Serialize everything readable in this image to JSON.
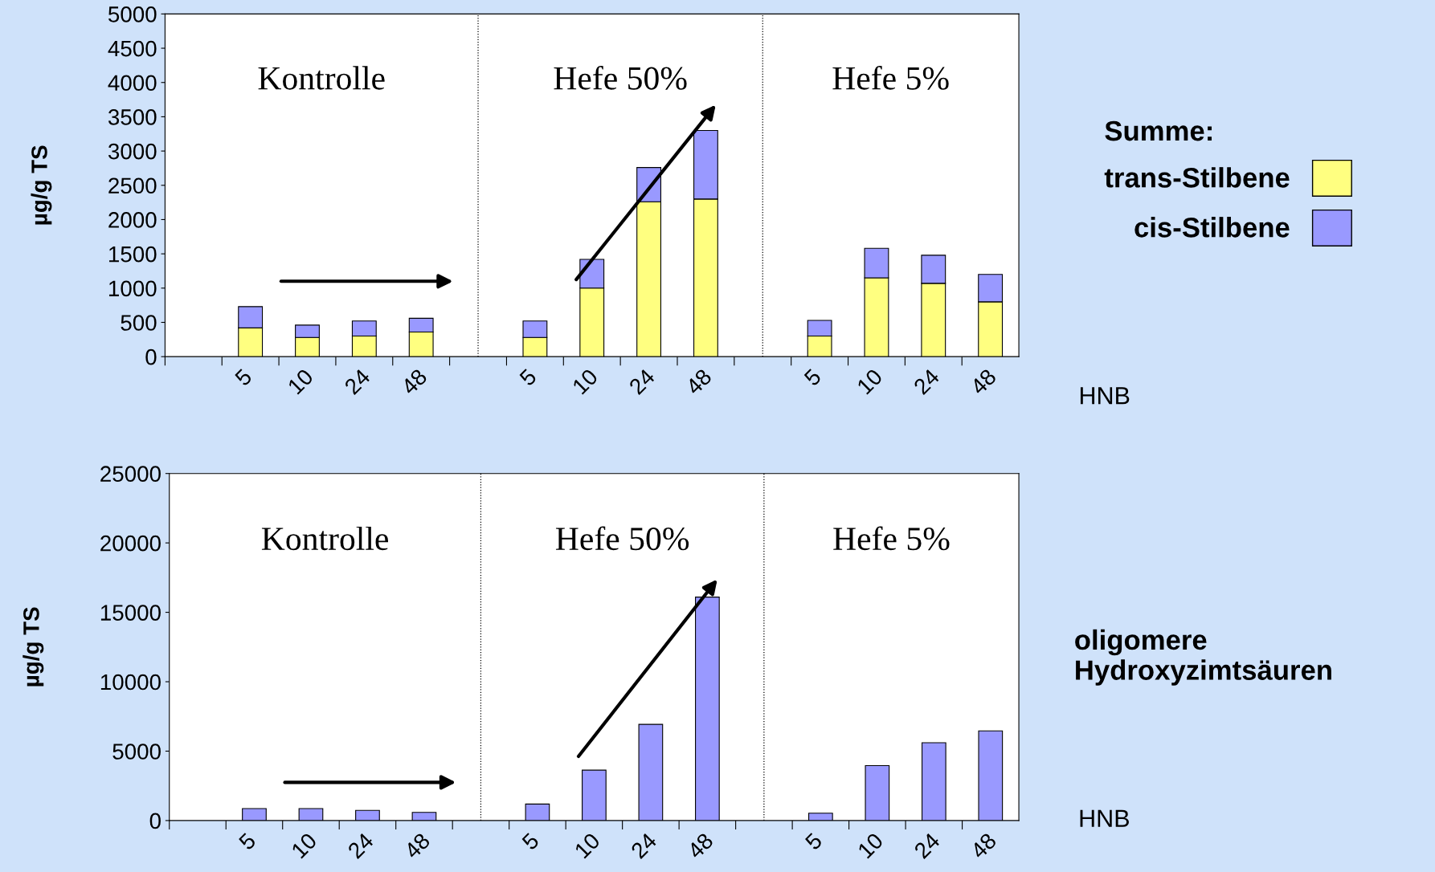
{
  "chart_data": [
    {
      "type": "bar",
      "stacked": true,
      "ylabel": "µg/g TS",
      "xlabel": "HNB",
      "legend_title": "Summe:",
      "legend": "right",
      "categories": [
        null,
        "5",
        "10",
        "24",
        "48",
        null,
        "5",
        "10",
        "24",
        "48",
        null,
        "5",
        "10",
        "24",
        "48"
      ],
      "series": [
        {
          "name": "trans-Stilbene",
          "color": "#ffff80",
          "values": [
            null,
            420,
            280,
            300,
            360,
            null,
            280,
            1000,
            2260,
            2300,
            null,
            300,
            1150,
            1070,
            800
          ]
        },
        {
          "name": "cis-Stilbene",
          "color": "#9999ff",
          "values": [
            null,
            310,
            180,
            220,
            200,
            null,
            240,
            420,
            500,
            1000,
            null,
            230,
            430,
            410,
            400
          ]
        }
      ],
      "ylim": [
        0,
        5000
      ],
      "yticks": [
        0,
        500,
        1000,
        1500,
        2000,
        2500,
        3000,
        3500,
        4000,
        4500,
        5000
      ],
      "annotations": [
        "Kontrolle",
        "Hefe 50%",
        "Hefe 5%"
      ]
    },
    {
      "type": "bar",
      "ylabel": "µg/g TS",
      "xlabel": "HNB",
      "categories": [
        null,
        "5",
        "10",
        "24",
        "48",
        null,
        "5",
        "10",
        "24",
        "48",
        null,
        "5",
        "10",
        "24",
        "48"
      ],
      "series": [
        {
          "color": "#9999ff",
          "values": [
            null,
            860,
            860,
            730,
            590,
            null,
            1190,
            3630,
            6930,
            16100,
            null,
            530,
            3960,
            5610,
            6460
          ]
        }
      ],
      "ylim": [
        0,
        25000
      ],
      "yticks": [
        0,
        5000,
        10000,
        15000,
        20000,
        25000
      ],
      "annotations": [
        "Kontrolle",
        "Hefe 50%",
        "Hefe 5%",
        "oligomere Hydroxyzimtsäuren"
      ]
    }
  ]
}
